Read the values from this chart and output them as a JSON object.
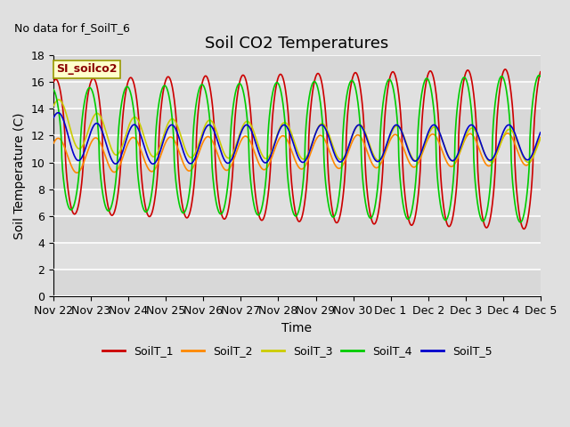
{
  "title": "Soil CO2 Temperatures",
  "xlabel": "Time",
  "ylabel": "Soil Temperature (C)",
  "no_data_label": "No data for f_SoilT_6",
  "site_label": "SI_soilco2",
  "ylim": [
    0,
    18
  ],
  "yticks": [
    0,
    2,
    4,
    6,
    8,
    10,
    12,
    14,
    16,
    18
  ],
  "legend_labels": [
    "SoilT_1",
    "SoilT_2",
    "SoilT_3",
    "SoilT_4",
    "SoilT_5"
  ],
  "legend_colors": [
    "#cc0000",
    "#ff8800",
    "#cccc00",
    "#00cc00",
    "#0000cc"
  ],
  "x_tick_labels": [
    "Nov 22",
    "Nov 23",
    "Nov 24",
    "Nov 25",
    "Nov 26",
    "Nov 27",
    "Nov 28",
    "Nov 29",
    "Nov 30",
    "Dec 1",
    "Dec 2",
    "Dec 3",
    "Dec 4",
    "Dec 5"
  ],
  "background_color": "#e0e0e0",
  "plot_bg_color": "#e0e0e0",
  "grid_color": "#ffffff",
  "title_fontsize": 13,
  "axis_label_fontsize": 10,
  "tick_fontsize": 9,
  "figsize": [
    6.4,
    4.8
  ],
  "dpi": 100
}
